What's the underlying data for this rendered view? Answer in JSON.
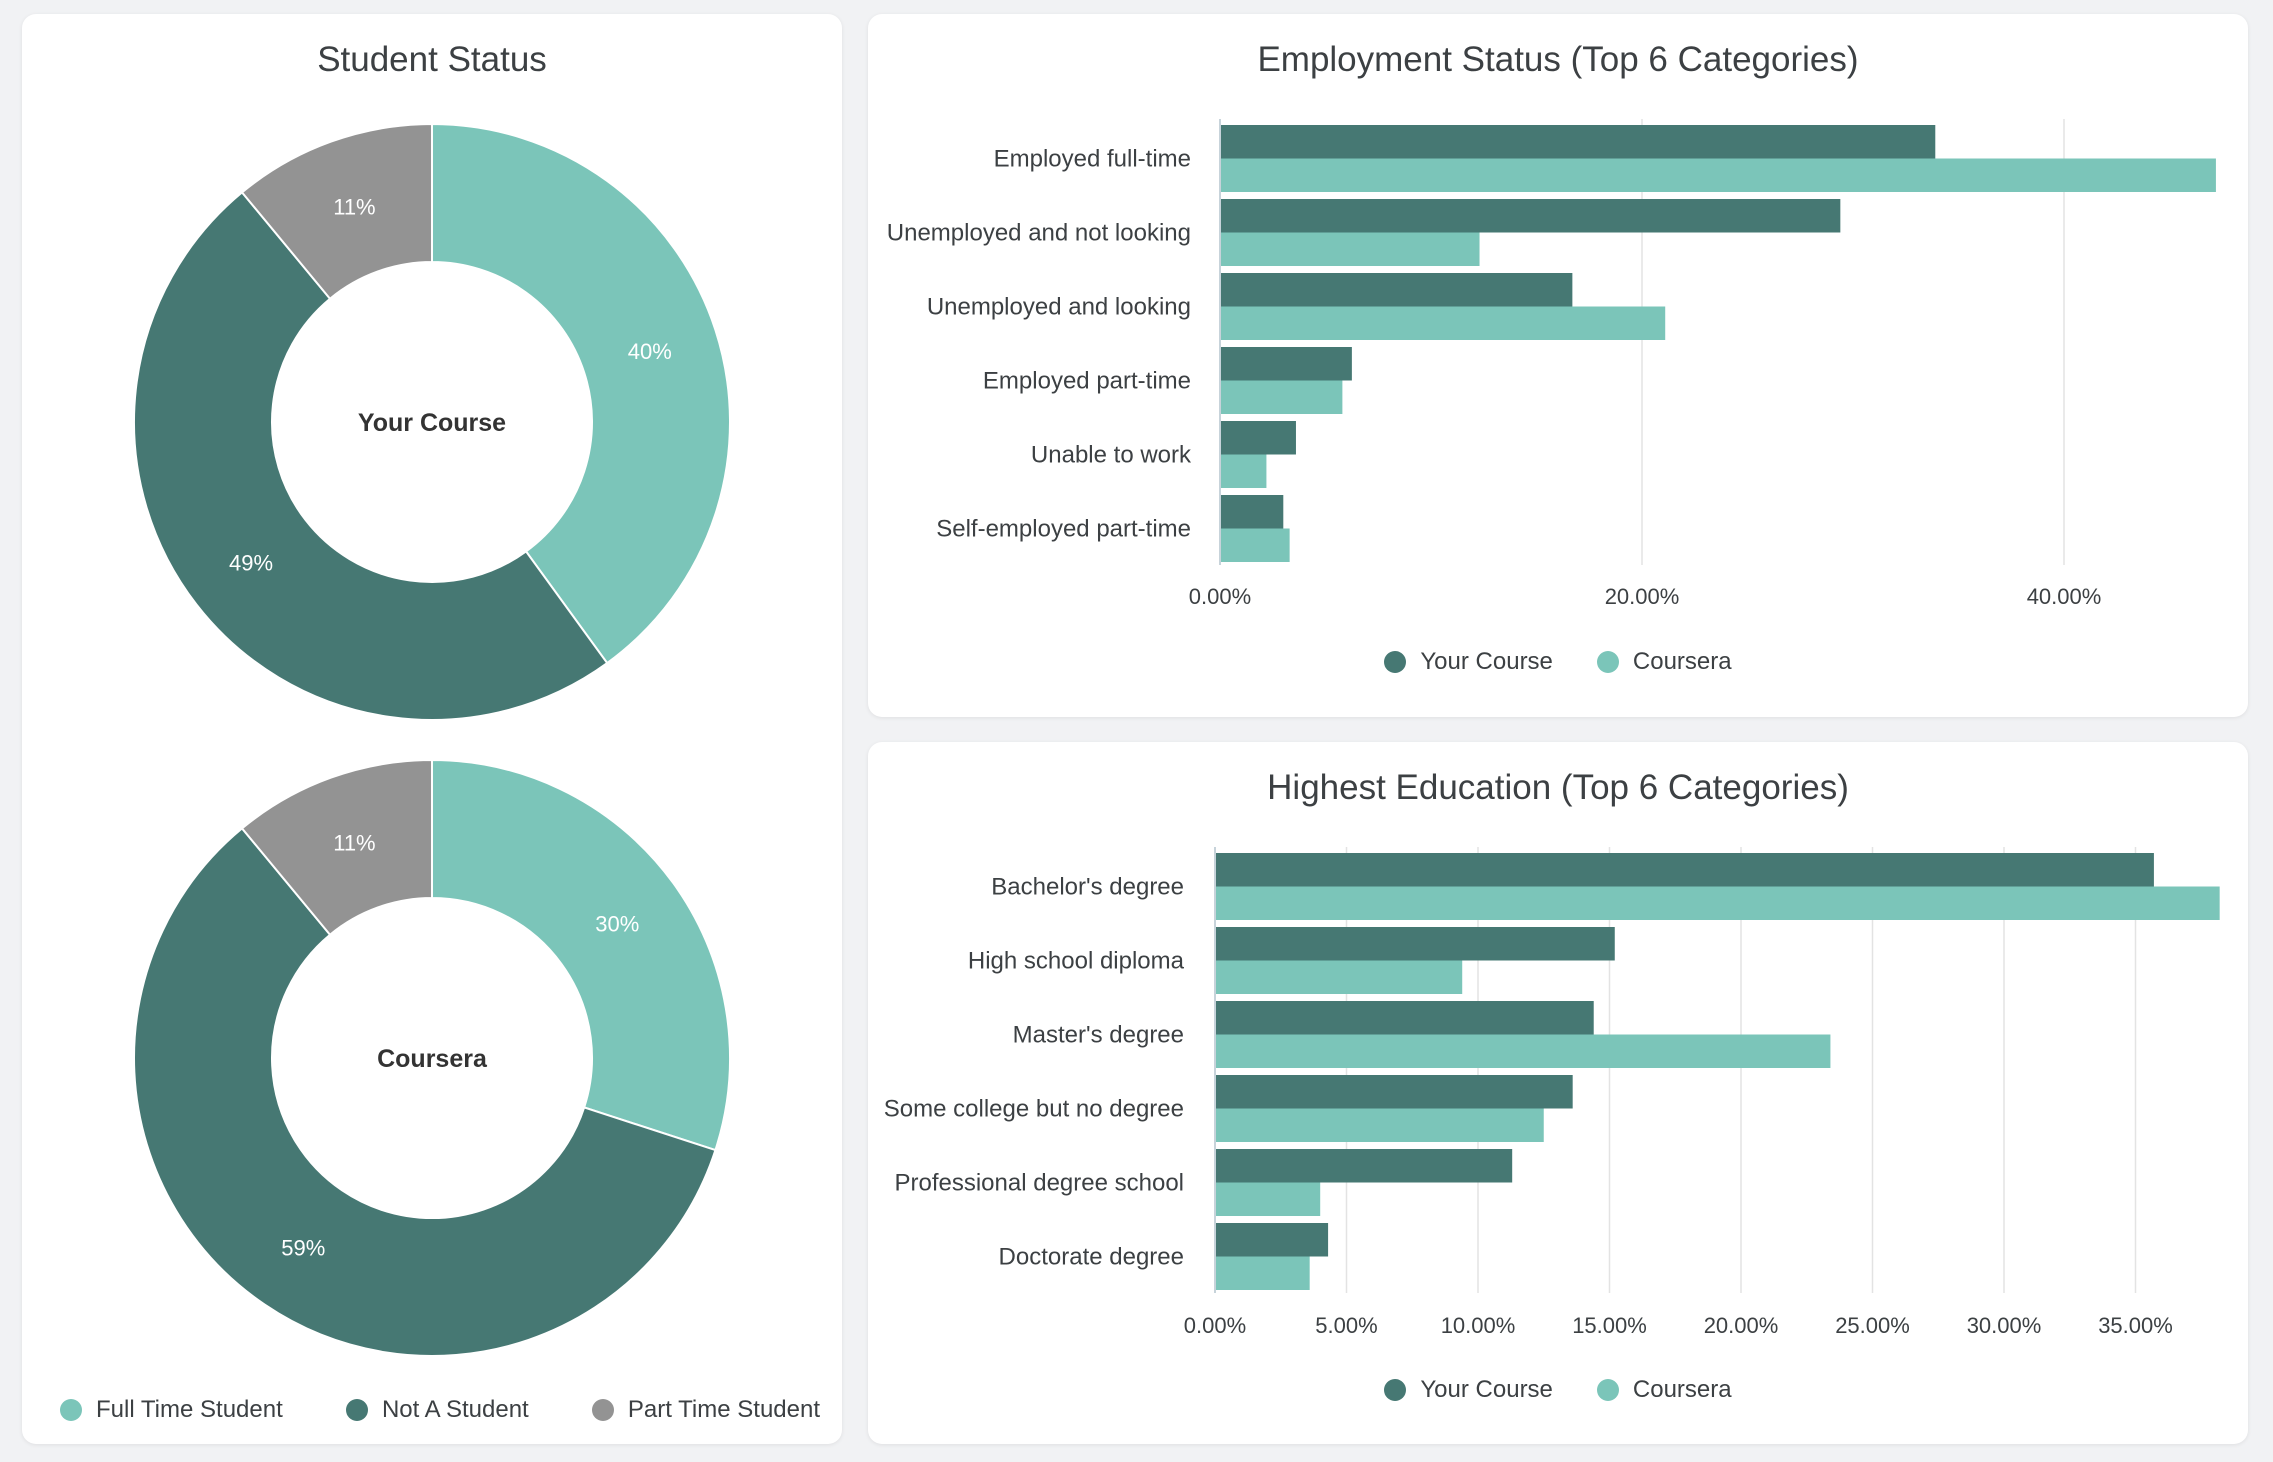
{
  "colors": {
    "your_course": "#467873",
    "coursera": "#7bc5b9",
    "part_time": "#939393",
    "grid": "#e3e3e3",
    "axis": "#c7d3da",
    "text": "#3c4043"
  },
  "student_status": {
    "title": "Student Status",
    "legend": [
      {
        "label": "Full Time Student",
        "color": "#7bc5b9"
      },
      {
        "label": "Not A Student",
        "color": "#467873"
      },
      {
        "label": "Part Time Student",
        "color": "#939393"
      }
    ]
  },
  "employment": {
    "title": "Employment Status (Top 6 Categories)",
    "legend": [
      {
        "label": "Your Course",
        "color": "#467873"
      },
      {
        "label": "Coursera",
        "color": "#7bc5b9"
      }
    ]
  },
  "education": {
    "title": "Highest Education (Top 6 Categories)",
    "legend": [
      {
        "label": "Your Course",
        "color": "#467873"
      },
      {
        "label": "Coursera",
        "color": "#7bc5b9"
      }
    ]
  },
  "chart_data": [
    {
      "type": "pie",
      "title": "Student Status",
      "center_label": "Your Course",
      "categories": [
        "Full Time Student",
        "Not A Student",
        "Part Time Student"
      ],
      "values": [
        40,
        49,
        11
      ],
      "labels": [
        "40%",
        "49%",
        "11%"
      ],
      "colors": [
        "#7bc5b9",
        "#467873",
        "#939393"
      ],
      "donut": true,
      "legend": "bottom"
    },
    {
      "type": "pie",
      "title": "Student Status",
      "center_label": "Coursera",
      "categories": [
        "Full Time Student",
        "Not A Student",
        "Part Time Student"
      ],
      "values": [
        30,
        59,
        11
      ],
      "labels": [
        "30%",
        "59%",
        "11%"
      ],
      "colors": [
        "#7bc5b9",
        "#467873",
        "#939393"
      ],
      "donut": true,
      "legend": "bottom"
    },
    {
      "type": "bar",
      "orientation": "horizontal",
      "title": "Employment Status (Top 6 Categories)",
      "categories": [
        "Employed full-time",
        "Unemployed and not looking",
        "Unemployed and looking",
        "Employed part-time",
        "Unable to work",
        "Self-employed part-time"
      ],
      "series": [
        {
          "name": "Your Course",
          "values": [
            33.9,
            29.4,
            16.7,
            6.25,
            3.6,
            3.0
          ]
        },
        {
          "name": "Coursera",
          "values": [
            47.2,
            12.3,
            21.1,
            5.8,
            2.2,
            3.3
          ]
        }
      ],
      "xticks": [
        0,
        20,
        40
      ],
      "xtick_labels": [
        "0.00%",
        "20.00%",
        "40.00%"
      ],
      "xlim": [
        0,
        47.5
      ],
      "grid": true,
      "legend": "bottom"
    },
    {
      "type": "bar",
      "orientation": "horizontal",
      "title": "Highest Education (Top 6 Categories)",
      "categories": [
        "Bachelor's degree",
        "High school diploma",
        "Master's degree",
        "Some college but no degree",
        "Professional degree school",
        "Doctorate degree"
      ],
      "series": [
        {
          "name": "Your Course",
          "values": [
            35.7,
            15.2,
            14.4,
            13.6,
            11.3,
            4.3
          ]
        },
        {
          "name": "Coursera",
          "values": [
            38.2,
            9.4,
            23.4,
            12.5,
            4.0,
            3.6
          ]
        }
      ],
      "xticks": [
        0,
        5,
        10,
        15,
        20,
        25,
        30,
        35
      ],
      "xtick_labels": [
        "0.00%",
        "5.00%",
        "10.00%",
        "15.00%",
        "20.00%",
        "25.00%",
        "30.00%",
        "35.00%"
      ],
      "xlim": [
        0,
        38.2
      ],
      "grid": true,
      "legend": "bottom"
    }
  ]
}
